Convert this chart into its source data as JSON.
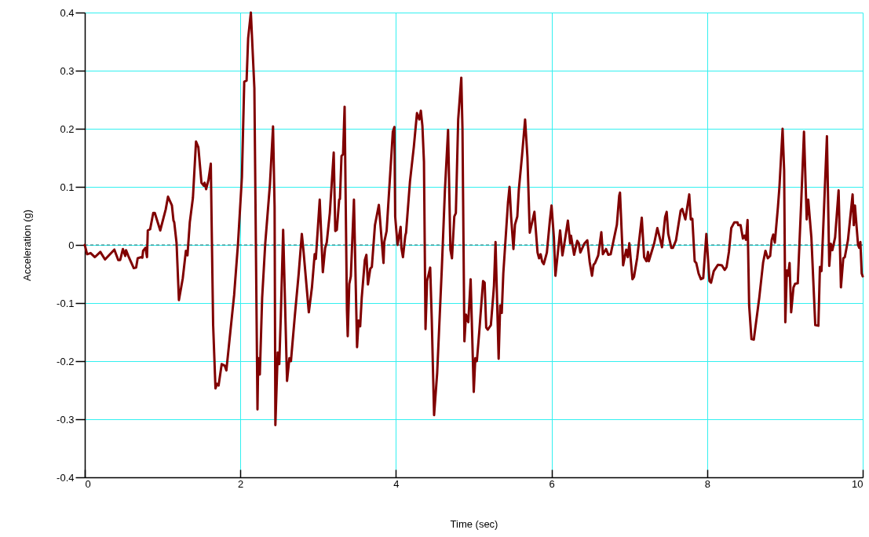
{
  "chart_data": {
    "type": "line",
    "xlabel": "Time (sec)",
    "ylabel": "Acceleration (g)",
    "xlim": [
      0,
      10
    ],
    "ylim": [
      -0.4,
      0.4
    ],
    "xticks": [
      0,
      2,
      4,
      6,
      8,
      10
    ],
    "yticks": [
      -0.4,
      -0.3,
      -0.2,
      -0.1,
      0,
      0.1,
      0.2,
      0.3,
      0.4
    ],
    "grid": true,
    "ref_lines": [
      {
        "axis": "y",
        "value": 0,
        "color": "#1f6f6f",
        "line_style": "dashed"
      }
    ],
    "x": [
      0,
      0.03,
      0.075,
      0.13,
      0.2,
      0.26,
      0.38,
      0.43,
      0.455,
      0.49,
      0.52,
      0.53,
      0.56,
      0.63,
      0.66,
      0.68,
      0.72,
      0.74,
      0.75,
      0.78,
      0.8,
      0.81,
      0.84,
      0.88,
      0.9,
      0.97,
      1.04,
      1.07,
      1.12,
      1.14,
      1.15,
      1.18,
      1.21,
      1.26,
      1.3,
      1.32,
      1.35,
      1.39,
      1.43,
      1.46,
      1.5,
      1.53,
      1.54,
      1.56,
      1.59,
      1.62,
      1.63,
      1.65,
      1.68,
      1.7,
      1.72,
      1.76,
      1.8,
      1.82,
      1.86,
      1.92,
      1.97,
      2.02,
      2.05,
      2.08,
      2.1,
      2.135,
      2.18,
      2.22,
      2.23,
      2.25,
      2.28,
      2.32,
      2.38,
      2.42,
      2.44,
      2.45,
      2.48,
      2.5,
      2.52,
      2.55,
      2.6,
      2.63,
      2.65,
      2.7,
      2.75,
      2.79,
      2.81,
      2.88,
      2.92,
      2.955,
      2.97,
      3.02,
      3.06,
      3.09,
      3.11,
      3.15,
      3.2,
      3.22,
      3.24,
      3.27,
      3.28,
      3.3,
      3.32,
      3.34,
      3.37,
      3.38,
      3.4,
      3.42,
      3.46,
      3.5,
      3.52,
      3.54,
      3.56,
      3.6,
      3.62,
      3.64,
      3.67,
      3.69,
      3.73,
      3.78,
      3.84,
      3.85,
      3.88,
      3.96,
      3.98,
      3.99,
      4.02,
      4.06,
      4.07,
      4.09,
      4.12,
      4.13,
      4.18,
      4.23,
      4.27,
      4.3,
      4.32,
      4.34,
      4.36,
      4.38,
      4.4,
      4.44,
      4.46,
      4.49,
      4.53,
      4.59,
      4.63,
      4.67,
      4.7,
      4.72,
      4.75,
      4.77,
      4.8,
      4.84,
      4.855,
      4.88,
      4.9,
      4.93,
      4.96,
      5.0,
      5.02,
      5.04,
      5.07,
      5.12,
      5.14,
      5.16,
      5.18,
      5.22,
      5.25,
      5.26,
      5.28,
      5.32,
      5.34,
      5.36,
      5.38,
      5.44,
      5.46,
      5.48,
      5.51,
      5.53,
      5.56,
      5.58,
      5.62,
      5.66,
      5.69,
      5.72,
      5.75,
      5.78,
      5.82,
      5.84,
      5.86,
      5.88,
      5.9,
      5.94,
      5.98,
      6.0,
      6.03,
      6.05,
      6.09,
      6.11,
      6.14,
      6.16,
      6.21,
      6.24,
      6.25,
      6.29,
      6.33,
      6.35,
      6.37,
      6.42,
      6.46,
      6.49,
      6.52,
      6.54,
      6.56,
      6.6,
      6.64,
      6.66,
      6.7,
      6.73,
      6.76,
      6.79,
      6.84,
      6.87,
      6.88,
      6.92,
      6.96,
      6.98,
      7.0,
      7.04,
      7.06,
      7.1,
      7.16,
      7.19,
      7.22,
      7.24,
      7.25,
      7.32,
      7.36,
      7.39,
      7.42,
      7.46,
      7.48,
      7.5,
      7.54,
      7.56,
      7.6,
      7.66,
      7.68,
      7.72,
      7.77,
      7.79,
      7.81,
      7.84,
      7.86,
      7.89,
      7.92,
      7.95,
      7.99,
      8.03,
      8.05,
      8.085,
      8.11,
      8.14,
      8.19,
      8.225,
      8.25,
      8.28,
      8.31,
      8.35,
      8.39,
      8.4,
      8.43,
      8.46,
      8.48,
      8.5,
      8.52,
      8.54,
      8.57,
      8.6,
      8.67,
      8.72,
      8.75,
      8.78,
      8.81,
      8.83,
      8.85,
      8.87,
      8.91,
      8.93,
      8.97,
      8.99,
      9.005,
      9.025,
      9.04,
      9.06,
      9.08,
      9.11,
      9.13,
      9.165,
      9.21,
      9.245,
      9.28,
      9.3,
      9.34,
      9.39,
      9.43,
      9.45,
      9.47,
      9.54,
      9.57,
      9.59,
      9.61,
      9.645,
      9.69,
      9.72,
      9.75,
      9.77,
      9.81,
      9.87,
      9.885,
      9.9,
      9.94,
      9.955,
      9.97,
      9.987,
      10
    ],
    "series": [
      {
        "color": "#800000",
        "values": [
          0,
          -0.016,
          -0.014,
          -0.021,
          -0.012,
          -0.025,
          -0.008,
          -0.026,
          -0.026,
          -0.007,
          -0.019,
          -0.009,
          -0.019,
          -0.04,
          -0.039,
          -0.023,
          -0.021,
          -0.022,
          -0.01,
          -0.005,
          -0.021,
          0.025,
          0.027,
          0.055,
          0.055,
          0.025,
          0.061,
          0.083,
          0.068,
          0.042,
          0.039,
          0.003,
          -0.095,
          -0.057,
          -0.01,
          -0.018,
          0.039,
          0.081,
          0.178,
          0.168,
          0.107,
          0.102,
          0.107,
          0.096,
          0.112,
          0.14,
          0.044,
          -0.138,
          -0.247,
          -0.239,
          -0.242,
          -0.205,
          -0.208,
          -0.216,
          -0.164,
          -0.086,
          0.003,
          0.117,
          0.281,
          0.283,
          0.356,
          0.4,
          0.27,
          -0.283,
          -0.195,
          -0.223,
          -0.091,
          0.003,
          0.104,
          0.204,
          0.065,
          -0.31,
          -0.185,
          -0.205,
          -0.122,
          0.026,
          -0.234,
          -0.195,
          -0.2,
          -0.122,
          -0.049,
          0.019,
          -0.008,
          -0.116,
          -0.073,
          -0.016,
          -0.024,
          0.078,
          -0.047,
          -0.005,
          0.004,
          0.055,
          0.159,
          0.024,
          0.026,
          0.078,
          0.079,
          0.153,
          0.156,
          0.238,
          -0.112,
          -0.157,
          -0.067,
          -0.054,
          0.078,
          -0.176,
          -0.13,
          -0.14,
          -0.091,
          -0.026,
          -0.017,
          -0.068,
          -0.041,
          -0.038,
          0.034,
          0.069,
          -0.031,
          0.005,
          0.024,
          0.195,
          0.203,
          0.049,
          0,
          0.031,
          -0.005,
          -0.021,
          0.016,
          0.021,
          0.109,
          0.169,
          0.227,
          0.216,
          0.231,
          0.205,
          0.143,
          -0.145,
          -0.062,
          -0.039,
          -0.127,
          -0.293,
          -0.22,
          -0.039,
          0.096,
          0.198,
          -0.008,
          -0.023,
          0.049,
          0.055,
          0.216,
          0.288,
          0.2,
          -0.166,
          -0.12,
          -0.133,
          -0.059,
          -0.253,
          -0.195,
          -0.2,
          -0.151,
          -0.062,
          -0.065,
          -0.142,
          -0.146,
          -0.138,
          -0.088,
          -0.07,
          0.005,
          -0.196,
          -0.104,
          -0.117,
          -0.049,
          0.073,
          0.1,
          0.049,
          -0.007,
          0.035,
          0.049,
          0.096,
          0.153,
          0.216,
          0.151,
          0.021,
          0.039,
          0.057,
          -0.013,
          -0.023,
          -0.016,
          -0.029,
          -0.033,
          -0.013,
          0.044,
          0.068,
          0.013,
          -0.053,
          -0.002,
          0.025,
          -0.018,
          -0.002,
          0.042,
          0.003,
          0.016,
          -0.017,
          0.007,
          0.003,
          -0.013,
          0.002,
          0.008,
          -0.029,
          -0.053,
          -0.034,
          -0.031,
          -0.018,
          0.022,
          -0.016,
          -0.007,
          -0.017,
          -0.016,
          0.003,
          0.035,
          0.085,
          0.09,
          -0.035,
          -0.008,
          -0.021,
          0.003,
          -0.059,
          -0.055,
          -0.023,
          0.047,
          -0.021,
          -0.028,
          -0.012,
          -0.028,
          0.003,
          0.029,
          0.013,
          -0.004,
          0.048,
          0.057,
          0.019,
          -0.005,
          -0.005,
          0.008,
          0.059,
          0.062,
          0.044,
          0.087,
          0.044,
          0.045,
          -0.028,
          -0.031,
          -0.049,
          -0.059,
          -0.057,
          0.019,
          -0.062,
          -0.065,
          -0.045,
          -0.04,
          -0.034,
          -0.035,
          -0.043,
          -0.038,
          -0.012,
          0.029,
          0.039,
          0.039,
          0.034,
          0.034,
          0.011,
          0.016,
          0.009,
          0.043,
          -0.104,
          -0.162,
          -0.163,
          -0.091,
          -0.03,
          -0.01,
          -0.023,
          -0.019,
          0.009,
          0.018,
          0.004,
          0.065,
          0.101,
          0.2,
          0.128,
          -0.133,
          -0.044,
          -0.053,
          -0.031,
          -0.116,
          -0.073,
          -0.067,
          -0.066,
          0.076,
          0.195,
          0.044,
          0.078,
          0.013,
          -0.138,
          -0.139,
          -0.038,
          -0.045,
          0.187,
          -0.036,
          0.002,
          -0.009,
          0.013,
          0.094,
          -0.073,
          -0.023,
          -0.021,
          0.008,
          0.087,
          0.034,
          0.068,
          0,
          -0.005,
          0.005,
          -0.049,
          -0.054
        ]
      }
    ]
  }
}
